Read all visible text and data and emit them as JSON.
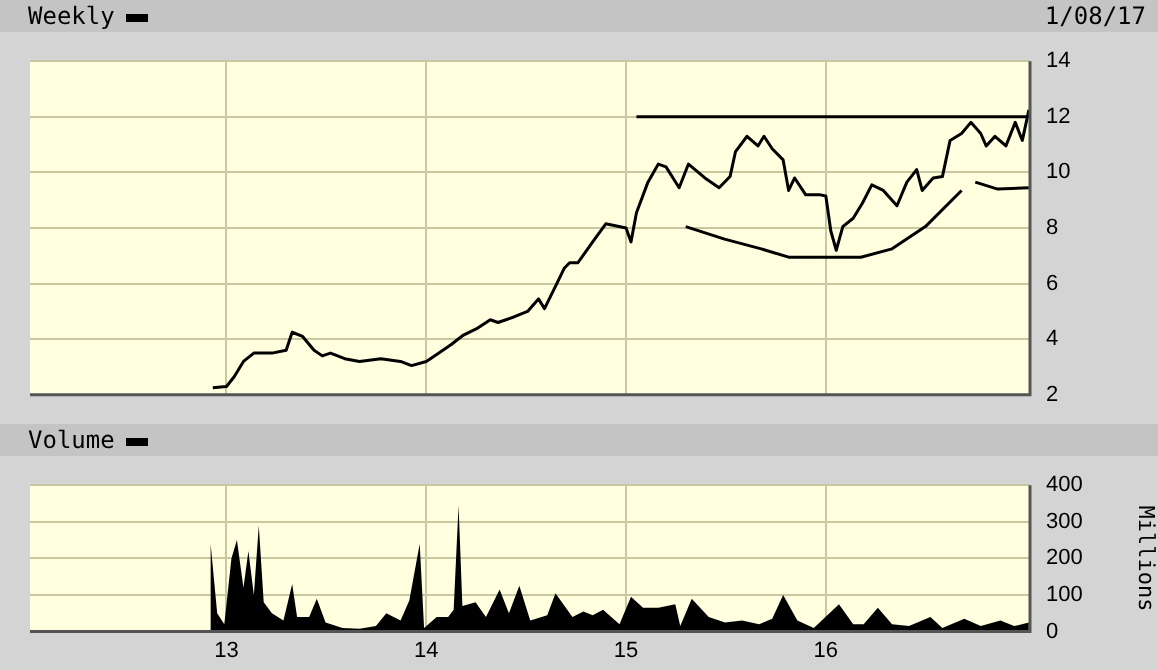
{
  "chart_data": [
    {
      "type": "line",
      "title": "Weekly",
      "annotations": [
        "1/08/17"
      ],
      "marker": "none",
      "grid": true,
      "tick_labels": "y",
      "xlim": [
        "2012-01-08",
        "2017-01-08"
      ],
      "xticks": [
        {
          "value": "2013-01-01",
          "label": null
        },
        {
          "value": "2014-01-01",
          "label": null
        },
        {
          "value": "2015-01-01",
          "label": null
        },
        {
          "value": "2016-01-01",
          "label": null
        }
      ],
      "ylim": [
        2,
        14
      ],
      "yticks": [
        2,
        4,
        6,
        8,
        10,
        12,
        14
      ],
      "series": [
        {
          "color": "#000000",
          "x": [
            "2012-12-07",
            "2013-01-01",
            "2013-01-15",
            "2013-02-01",
            "2013-02-20",
            "2013-03-25",
            "2013-04-20",
            "2013-05-01",
            "2013-05-20",
            "2013-06-10",
            "2013-06-25",
            "2013-07-10",
            "2013-08-05",
            "2013-09-01",
            "2013-10-10",
            "2013-11-15",
            "2013-12-05",
            "2014-01-01",
            "2014-01-20",
            "2014-02-15",
            "2014-03-10",
            "2014-04-05",
            "2014-04-28",
            "2014-05-12",
            "2014-06-10",
            "2014-07-05",
            "2014-07-25",
            "2014-08-05",
            "2014-08-25",
            "2014-09-10",
            "2014-09-20",
            "2014-10-05",
            "2014-11-01",
            "2014-11-25",
            "2015-01-01",
            "2015-01-10",
            "2015-01-20",
            "2015-02-10",
            "2015-03-01",
            "2015-03-15",
            "2015-04-08",
            "2015-04-25",
            "2015-05-25",
            "2015-06-20",
            "2015-07-10",
            "2015-07-20",
            "2015-08-10",
            "2015-08-30",
            "2015-09-10",
            "2015-09-25",
            "2015-10-15",
            "2015-10-25",
            "2015-11-05",
            "2015-11-25",
            "2015-12-20",
            "2016-01-01",
            "2016-01-10",
            "2016-01-20",
            "2016-02-01",
            "2016-02-20",
            "2016-03-08",
            "2016-03-25",
            "2016-04-15",
            "2016-05-10",
            "2016-05-28",
            "2016-06-15",
            "2016-06-25",
            "2016-07-15",
            "2016-08-01",
            "2016-08-15",
            "2016-09-05",
            "2016-09-22",
            "2016-10-10",
            "2016-10-20",
            "2016-11-05",
            "2016-11-25",
            "2016-12-12",
            "2016-12-25",
            "2017-01-06"
          ],
          "values": [
            2.25,
            2.3,
            2.65,
            3.2,
            3.5,
            3.5,
            3.6,
            4.25,
            4.1,
            3.6,
            3.4,
            3.5,
            3.3,
            3.2,
            3.3,
            3.2,
            3.05,
            3.2,
            3.45,
            3.8,
            4.15,
            4.4,
            4.7,
            4.6,
            4.8,
            5.0,
            5.45,
            5.1,
            5.9,
            6.55,
            6.75,
            6.75,
            7.5,
            8.15,
            8.0,
            7.5,
            8.55,
            9.65,
            10.3,
            10.2,
            9.45,
            10.3,
            9.8,
            9.45,
            9.85,
            10.75,
            11.3,
            10.95,
            11.3,
            10.85,
            10.45,
            9.35,
            9.8,
            9.2,
            9.2,
            9.15,
            7.9,
            7.2,
            8.05,
            8.35,
            8.9,
            9.55,
            9.35,
            8.8,
            9.65,
            10.1,
            9.35,
            9.8,
            9.85,
            11.15,
            11.4,
            11.8,
            11.4,
            10.95,
            11.3,
            10.95,
            11.8,
            11.15,
            12.25
          ]
        },
        {
          "color": "#000000",
          "x": [
            "2015-01-20",
            "2017-01-08"
          ],
          "values": [
            12,
            12
          ]
        },
        {
          "color": "#000000",
          "x": [
            "2015-04-20",
            "2015-06-30",
            "2015-09-05",
            "2015-10-25",
            "2016-03-05",
            "2016-05-01",
            "2016-07-01",
            "2016-09-05"
          ],
          "values": [
            8.05,
            7.6,
            7.25,
            6.95,
            6.95,
            7.25,
            8.05,
            9.35
          ]
        },
        {
          "color": "#000000",
          "x": [
            "2016-09-30",
            "2016-11-10",
            "2017-01-06"
          ],
          "values": [
            9.65,
            9.4,
            9.45
          ]
        }
      ]
    },
    {
      "type": "area",
      "title": "Volume",
      "ylabel": "Millions",
      "grid": true,
      "color": "#000000",
      "xlim": [
        "2012-01-08",
        "2017-01-08"
      ],
      "xticks": [
        {
          "value": "2013-01-01",
          "label": "13"
        },
        {
          "value": "2014-01-01",
          "label": "14"
        },
        {
          "value": "2015-01-01",
          "label": "15"
        },
        {
          "value": "2016-01-01",
          "label": "16"
        }
      ],
      "ylim": [
        0,
        400
      ],
      "yticks": [
        0,
        100,
        200,
        300,
        400
      ],
      "x": [
        "2012-12-02",
        "2012-12-03",
        "2012-12-15",
        "2012-12-28",
        "2013-01-10",
        "2013-01-20",
        "2013-02-01",
        "2013-02-10",
        "2013-02-20",
        "2013-03-01",
        "2013-03-10",
        "2013-03-25",
        "2013-04-15",
        "2013-05-01",
        "2013-05-10",
        "2013-06-01",
        "2013-06-15",
        "2013-07-01",
        "2013-08-01",
        "2013-09-01",
        "2013-10-01",
        "2013-10-20",
        "2013-11-15",
        "2013-12-01",
        "2013-12-20",
        "2013-12-28",
        "2014-01-20",
        "2014-02-10",
        "2014-02-20",
        "2014-03-01",
        "2014-03-08",
        "2014-04-01",
        "2014-04-20",
        "2014-05-15",
        "2014-06-01",
        "2014-06-20",
        "2014-07-10",
        "2014-08-10",
        "2014-08-25",
        "2014-09-25",
        "2014-10-15",
        "2014-11-01",
        "2014-11-20",
        "2014-12-20",
        "2015-01-10",
        "2015-02-01",
        "2015-03-01",
        "2015-04-01",
        "2015-04-10",
        "2015-05-01",
        "2015-06-01",
        "2015-07-01",
        "2015-08-01",
        "2015-09-01",
        "2015-09-25",
        "2015-10-15",
        "2015-11-10",
        "2015-12-10",
        "2016-01-25",
        "2016-02-20",
        "2016-03-10",
        "2016-04-05",
        "2016-05-01",
        "2016-06-01",
        "2016-07-10",
        "2016-08-01",
        "2016-09-10",
        "2016-10-10",
        "2016-11-15",
        "2016-12-10",
        "2017-01-06"
      ],
      "values": [
        0,
        240,
        50,
        20,
        200,
        250,
        120,
        220,
        100,
        290,
        80,
        50,
        30,
        130,
        40,
        40,
        90,
        25,
        10,
        8,
        15,
        50,
        30,
        85,
        240,
        10,
        40,
        40,
        60,
        345,
        70,
        80,
        40,
        115,
        50,
        125,
        30,
        45,
        105,
        40,
        55,
        45,
        60,
        20,
        95,
        65,
        65,
        75,
        15,
        90,
        40,
        25,
        30,
        20,
        35,
        100,
        30,
        10,
        75,
        20,
        20,
        65,
        20,
        15,
        40,
        10,
        35,
        15,
        30,
        15,
        25
      ]
    }
  ]
}
